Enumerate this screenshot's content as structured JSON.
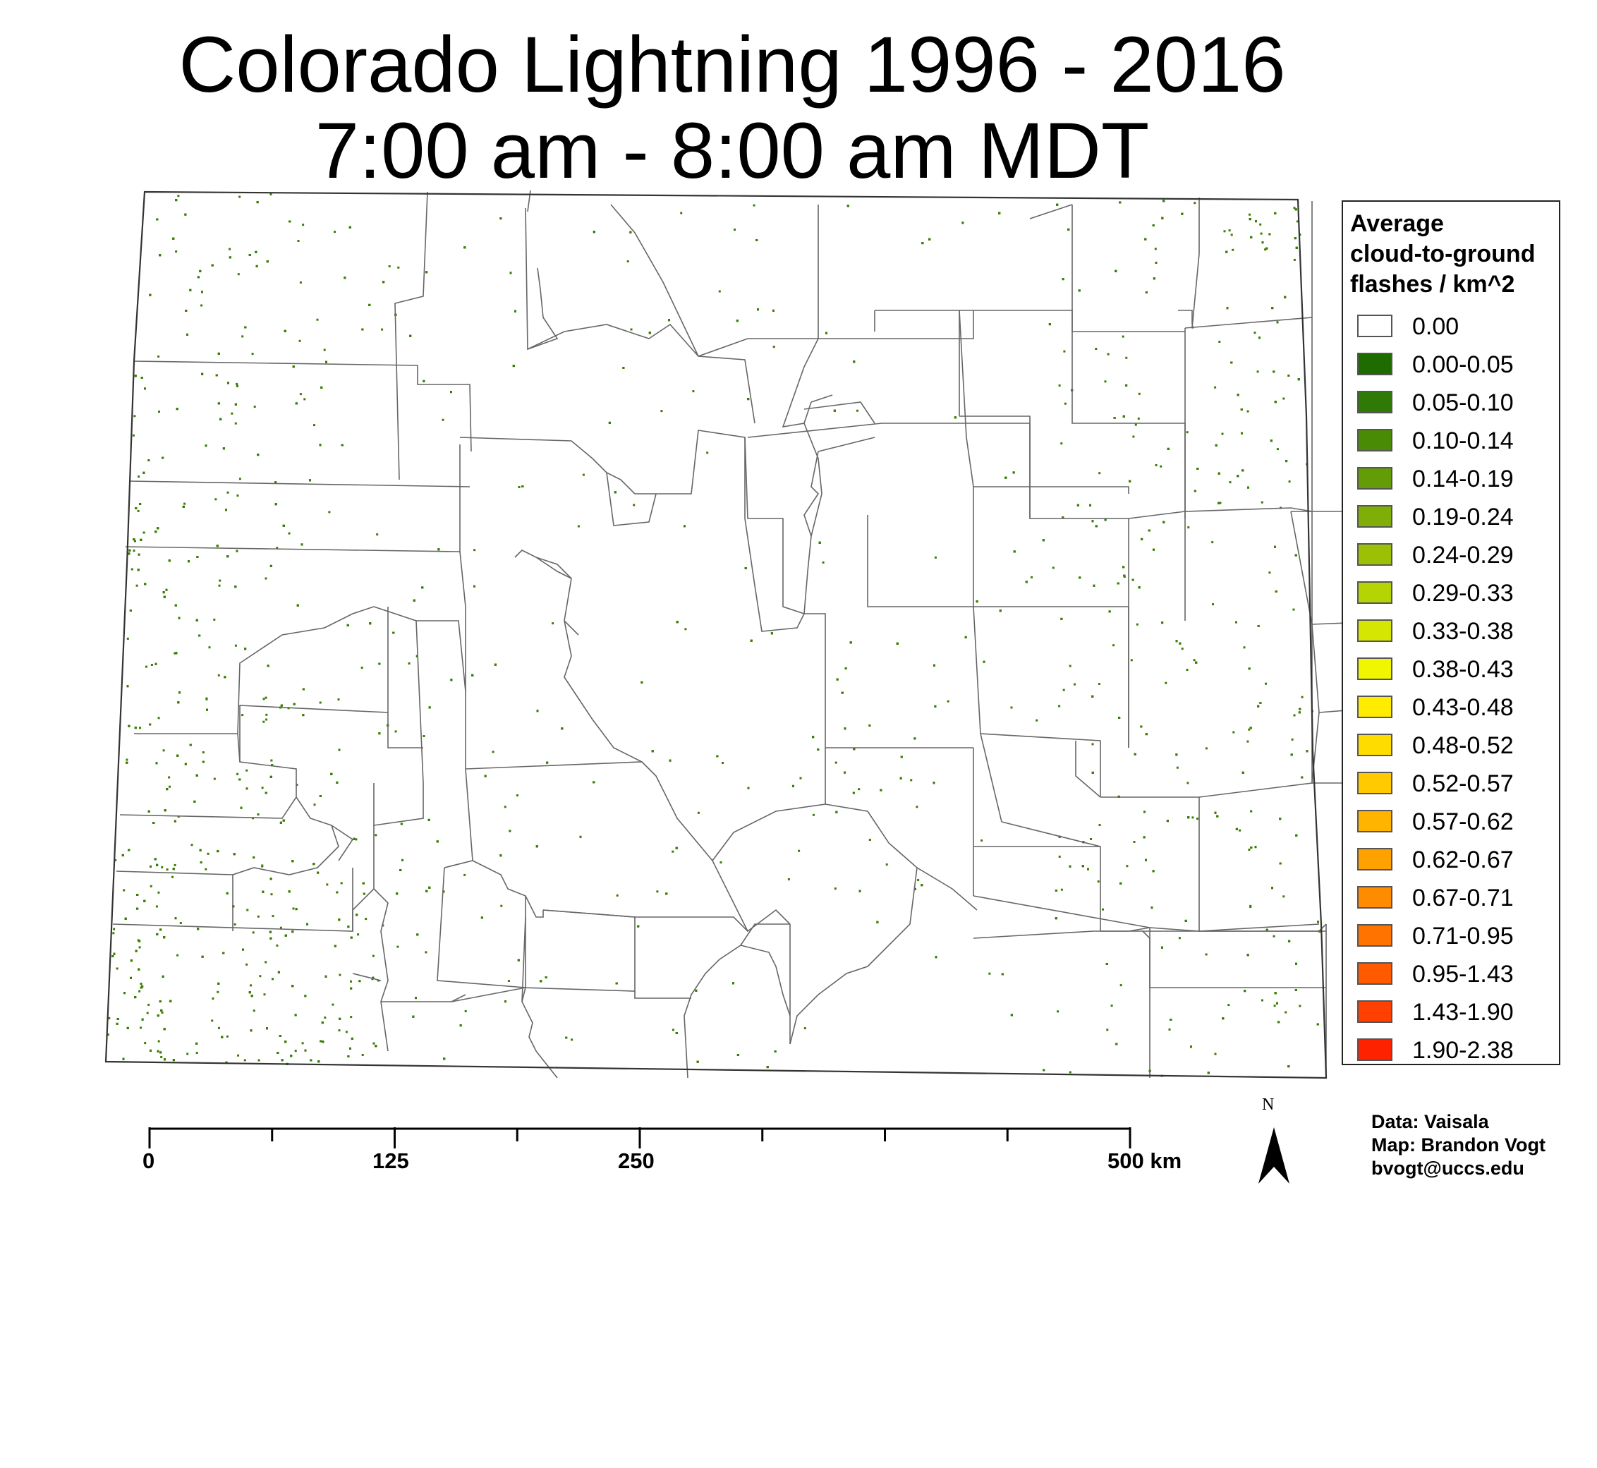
{
  "title": {
    "line1": "Colorado Lightning 1996 - 2016",
    "line2": "7:00 am - 8:00 am MDT"
  },
  "legend": {
    "title_lines": [
      "Average",
      "cloud-to-ground",
      "flashes / km^2"
    ],
    "classes": [
      {
        "label": "0.00",
        "color": "#ffffff"
      },
      {
        "label": "0.00-0.05",
        "color": "#1e6b00"
      },
      {
        "label": "0.05-0.10",
        "color": "#2f7a06"
      },
      {
        "label": "0.10-0.14",
        "color": "#4a8b06"
      },
      {
        "label": "0.14-0.19",
        "color": "#649c08"
      },
      {
        "label": "0.19-0.24",
        "color": "#7fae08"
      },
      {
        "label": "0.24-0.29",
        "color": "#9bc006"
      },
      {
        "label": "0.29-0.33",
        "color": "#b5d404"
      },
      {
        "label": "0.33-0.38",
        "color": "#d4e602"
      },
      {
        "label": "0.38-0.43",
        "color": "#f0f500"
      },
      {
        "label": "0.43-0.48",
        "color": "#ffec00"
      },
      {
        "label": "0.48-0.52",
        "color": "#ffdc00"
      },
      {
        "label": "0.52-0.57",
        "color": "#ffca00"
      },
      {
        "label": "0.57-0.62",
        "color": "#ffb400"
      },
      {
        "label": "0.62-0.67",
        "color": "#ffa200"
      },
      {
        "label": "0.67-0.71",
        "color": "#ff8c00"
      },
      {
        "label": "0.71-0.95",
        "color": "#ff7400"
      },
      {
        "label": "0.95-1.43",
        "color": "#ff5a00"
      },
      {
        "label": "1.43-1.90",
        "color": "#ff4000"
      },
      {
        "label": "1.90-2.38",
        "color": "#ff2200"
      }
    ]
  },
  "scale_bar": {
    "labels": [
      "0",
      "125",
      "250",
      "500 km"
    ]
  },
  "north_arrow": {
    "label": "N"
  },
  "credits": {
    "data": "Data: Vaisala",
    "map": "Map: Brandon Vogt",
    "email": "bvogt@uccs.edu"
  },
  "colors": {
    "flash_dot": "#3a7d00",
    "boundary": "#555555"
  }
}
